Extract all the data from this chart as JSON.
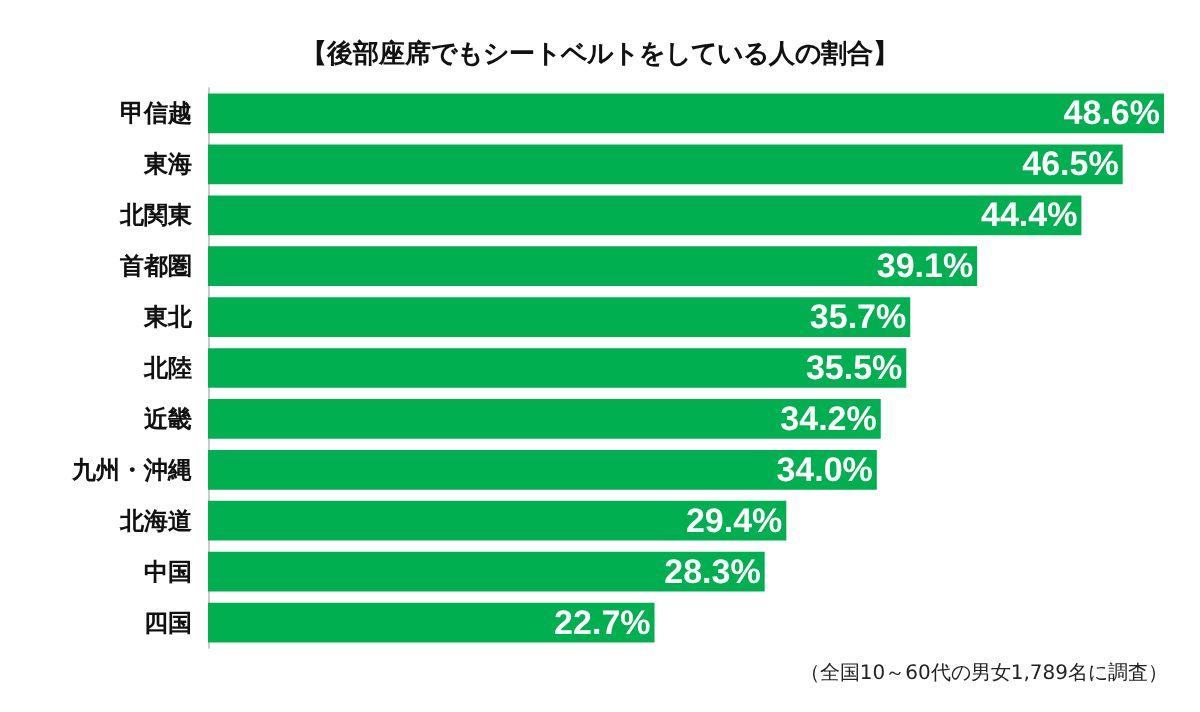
{
  "chart_data": {
    "type": "bar",
    "orientation": "horizontal",
    "title": "【後部座席でもシートベルトをしている人の割合】",
    "categories": [
      "甲信越",
      "東海",
      "北関東",
      "首都圏",
      "東北",
      "北陸",
      "近畿",
      "九州・沖縄",
      "北海道",
      "中国",
      "四国"
    ],
    "values": [
      48.6,
      46.5,
      44.4,
      39.1,
      35.7,
      35.5,
      34.2,
      34.0,
      29.4,
      28.3,
      22.7
    ],
    "value_labels": [
      "48.6%",
      "46.5%",
      "44.4%",
      "39.1%",
      "35.7%",
      "35.5%",
      "34.2%",
      "34.0%",
      "29.4%",
      "28.3%",
      "22.7%"
    ],
    "color": "#00b050",
    "annotations": [
      "（全国10～60代の男女1,789名に調査）"
    ]
  }
}
